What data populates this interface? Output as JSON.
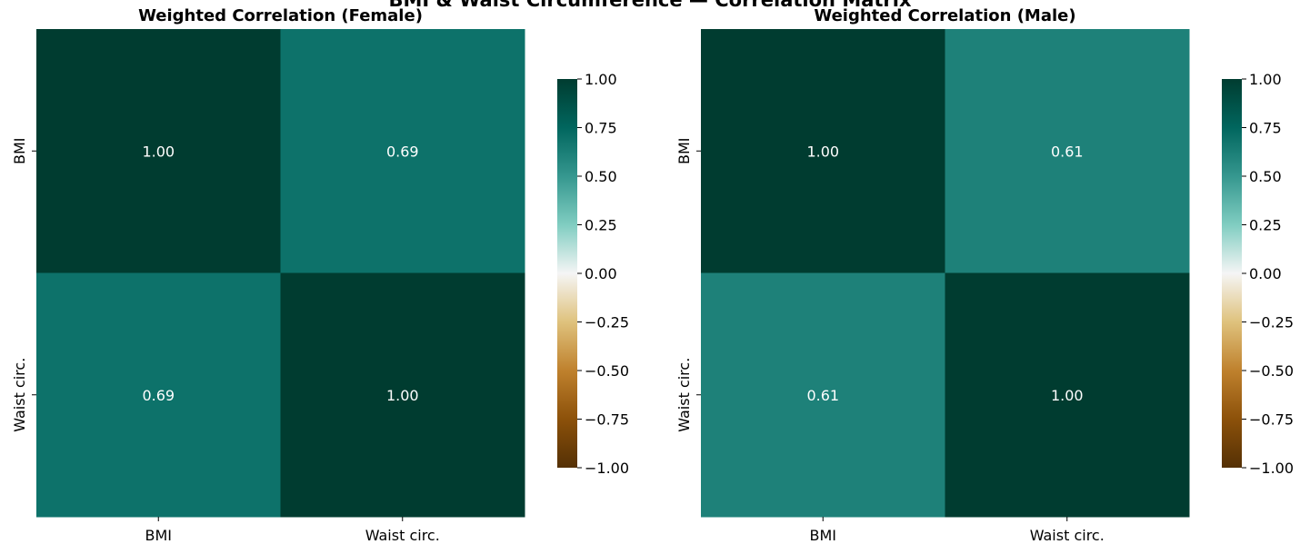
{
  "figure": {
    "suptitle": "BMI & Waist Circumference — Correlation Matrix"
  },
  "chart_data": [
    {
      "type": "heatmap",
      "title": "Weighted Correlation (Female)",
      "x_labels": [
        "BMI",
        "Waist circ."
      ],
      "y_labels": [
        "BMI",
        "Waist circ."
      ],
      "values": [
        [
          1.0,
          0.69
        ],
        [
          0.69,
          1.0
        ]
      ],
      "annotations": [
        [
          "1.00",
          "0.69"
        ],
        [
          "0.69",
          "1.00"
        ]
      ],
      "colormap": "BrBG",
      "vmin": -1.0,
      "vmax": 1.0,
      "colorbar_ticks": [
        "1.00",
        "0.75",
        "0.50",
        "0.25",
        "0.00",
        "−0.25",
        "−0.50",
        "−0.75",
        "−1.00"
      ]
    },
    {
      "type": "heatmap",
      "title": "Weighted Correlation (Male)",
      "x_labels": [
        "BMI",
        "Waist circ."
      ],
      "y_labels": [
        "BMI",
        "Waist circ."
      ],
      "values": [
        [
          1.0,
          0.61
        ],
        [
          0.61,
          1.0
        ]
      ],
      "annotations": [
        [
          "1.00",
          "0.61"
        ],
        [
          "0.61",
          "1.00"
        ]
      ],
      "colormap": "BrBG",
      "vmin": -1.0,
      "vmax": 1.0,
      "colorbar_ticks": [
        "1.00",
        "0.75",
        "0.50",
        "0.25",
        "0.00",
        "−0.25",
        "−0.50",
        "−0.75",
        "−1.00"
      ]
    }
  ]
}
